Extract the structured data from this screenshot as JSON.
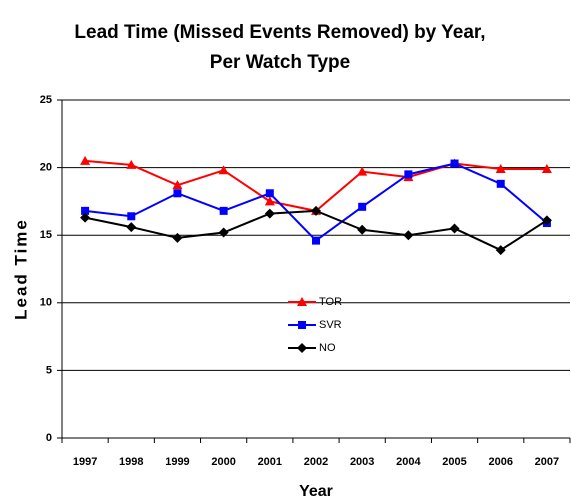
{
  "chart_data": {
    "type": "line",
    "title": "Lead Time (Missed Events Removed) by Year, Per Watch Type",
    "x_label": "Year",
    "y_label": "Lead Time",
    "categories": [
      "1997",
      "1998",
      "1999",
      "2000",
      "2001",
      "2002",
      "2003",
      "2004",
      "2005",
      "2006",
      "2007"
    ],
    "series": [
      {
        "name": "TOR",
        "color": "#ff0000",
        "marker": "triangle",
        "values": [
          20.5,
          20.2,
          18.7,
          19.8,
          17.5,
          16.8,
          19.7,
          19.3,
          20.3,
          19.9,
          19.9
        ]
      },
      {
        "name": "SVR",
        "color": "#0000ff",
        "marker": "square",
        "values": [
          16.8,
          16.4,
          18.1,
          16.8,
          18.1,
          14.6,
          17.1,
          19.5,
          20.3,
          18.8,
          15.9
        ]
      },
      {
        "name": "NO",
        "color": "#000000",
        "marker": "diamond",
        "values": [
          16.3,
          15.6,
          14.8,
          15.2,
          16.6,
          16.8,
          15.4,
          15.0,
          15.5,
          13.9,
          16.1
        ]
      }
    ],
    "ylim": [
      0,
      25
    ],
    "yticks": [
      0,
      5,
      10,
      15,
      20,
      25
    ],
    "grid": true,
    "legend": "center"
  }
}
